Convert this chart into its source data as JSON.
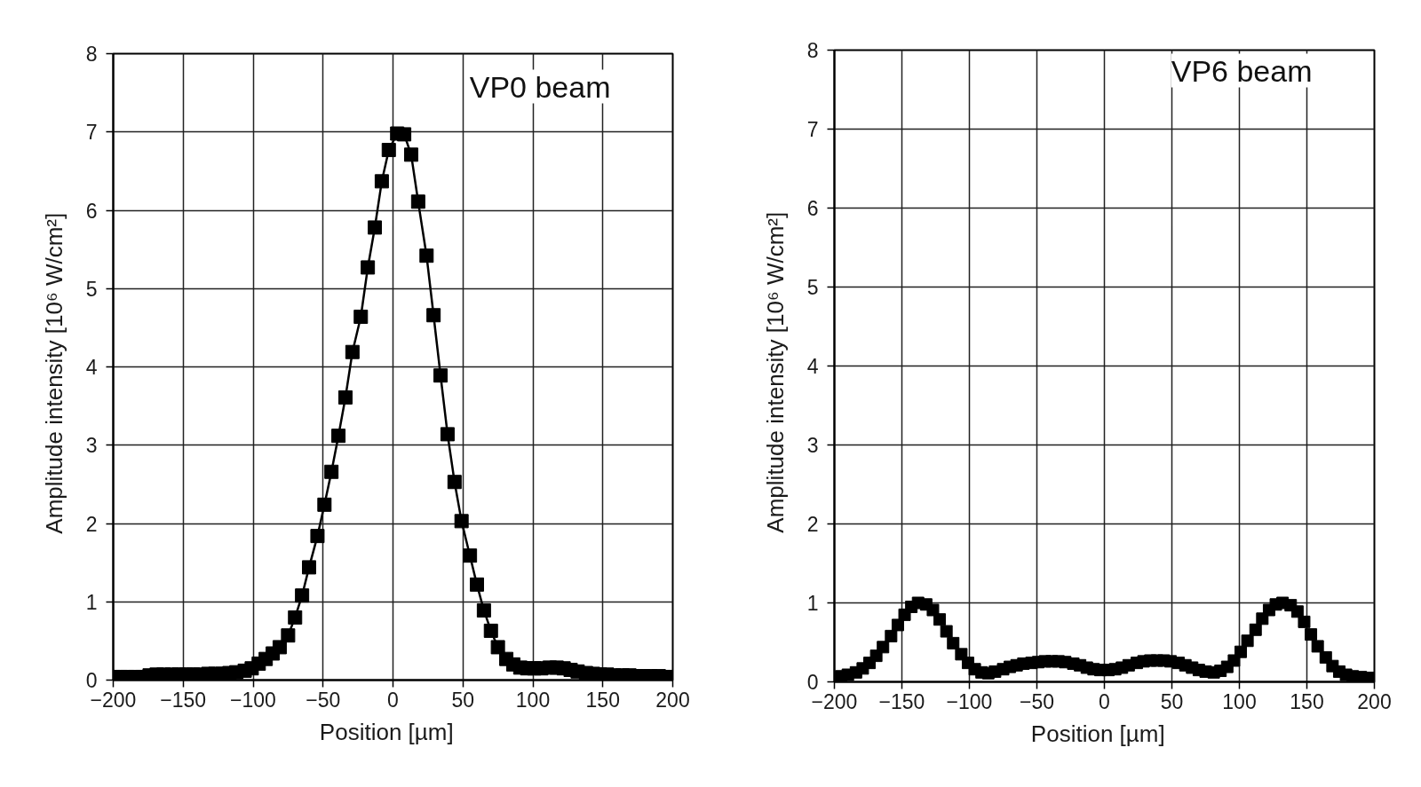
{
  "chart_data": [
    {
      "type": "line",
      "xlabel": "Position   [µm]",
      "ylabel": "Amplitude intensity   [10⁶ W/cm²]",
      "annotations": [
        "VP0 beam"
      ],
      "x": [
        -200,
        -195,
        -190,
        -184,
        -179,
        -174,
        -169,
        -164,
        -158,
        -153,
        -148,
        -143,
        -138,
        -132,
        -127,
        -122,
        -117,
        -112,
        -106,
        -101,
        -96,
        -91,
        -86,
        -81,
        -75,
        -70,
        -65,
        -60,
        -54,
        -49,
        -44,
        -39,
        -34,
        -29,
        -23,
        -18,
        -13,
        -8,
        -3,
        3,
        8,
        13,
        18,
        24,
        29,
        34,
        39,
        44,
        49,
        55,
        60,
        65,
        70,
        75,
        81,
        86,
        91,
        96,
        101,
        106,
        112,
        117,
        122,
        127,
        132,
        138,
        143,
        148,
        153,
        158,
        164,
        169,
        174,
        179,
        184,
        190,
        195,
        200
      ],
      "series": [
        {
          "color": "#000000",
          "values": [
            0.04,
            0.04,
            0.04,
            0.04,
            0.04,
            0.06,
            0.07,
            0.07,
            0.07,
            0.07,
            0.07,
            0.07,
            0.07,
            0.08,
            0.08,
            0.08,
            0.09,
            0.1,
            0.12,
            0.15,
            0.21,
            0.27,
            0.34,
            0.42,
            0.57,
            0.8,
            1.08,
            1.44,
            1.84,
            2.24,
            2.66,
            3.12,
            3.61,
            4.19,
            4.64,
            5.27,
            5.78,
            6.37,
            6.77,
            6.98,
            6.97,
            6.71,
            6.11,
            5.42,
            4.66,
            3.89,
            3.14,
            2.53,
            2.03,
            1.59,
            1.22,
            0.89,
            0.63,
            0.42,
            0.27,
            0.2,
            0.16,
            0.15,
            0.15,
            0.15,
            0.16,
            0.16,
            0.15,
            0.13,
            0.11,
            0.09,
            0.08,
            0.07,
            0.07,
            0.06,
            0.06,
            0.06,
            0.05,
            0.05,
            0.05,
            0.05,
            0.04,
            0.04
          ]
        }
      ],
      "xlim": [
        -200,
        200
      ],
      "xticks": [
        {
          "value": -200,
          "label": "−200"
        },
        {
          "value": -150,
          "label": "−150"
        },
        {
          "value": -100,
          "label": "−100"
        },
        {
          "value": -50,
          "label": "−50"
        },
        0,
        50,
        100,
        150,
        200
      ],
      "ylim": [
        0,
        8
      ],
      "yticks": [
        0,
        1,
        2,
        3,
        4,
        5,
        6,
        7,
        8
      ],
      "grid": true,
      "marker": "square",
      "line_style": "solid"
    },
    {
      "type": "scatter",
      "xlabel": "Position   [µm]",
      "ylabel": "Amplitude intensity   [10⁶ W/cm²]",
      "annotations": [
        "VP6 beam"
      ],
      "x": [
        -195,
        -190,
        -184,
        -179,
        -174,
        -169,
        -164,
        -158,
        -153,
        -148,
        -143,
        -138,
        -132,
        -127,
        -122,
        -117,
        -112,
        -106,
        -101,
        -96,
        -91,
        -86,
        -81,
        -75,
        -70,
        -65,
        -60,
        -54,
        -49,
        -44,
        -39,
        -34,
        -29,
        -23,
        -18,
        -13,
        -8,
        -3,
        3,
        8,
        13,
        18,
        24,
        29,
        34,
        39,
        44,
        49,
        55,
        60,
        65,
        70,
        75,
        81,
        86,
        91,
        96,
        101,
        106,
        112,
        117,
        122,
        127,
        132,
        138,
        143,
        148,
        153,
        158,
        164,
        169,
        174,
        179,
        184,
        190,
        195,
        200
      ],
      "series": [
        {
          "color": "#000000",
          "values": [
            0.07,
            0.09,
            0.12,
            0.17,
            0.24,
            0.33,
            0.44,
            0.58,
            0.72,
            0.85,
            0.95,
            1.0,
            0.98,
            0.91,
            0.79,
            0.64,
            0.49,
            0.35,
            0.24,
            0.16,
            0.12,
            0.11,
            0.13,
            0.16,
            0.19,
            0.21,
            0.23,
            0.24,
            0.25,
            0.26,
            0.26,
            0.26,
            0.25,
            0.23,
            0.21,
            0.18,
            0.16,
            0.15,
            0.15,
            0.16,
            0.18,
            0.21,
            0.24,
            0.26,
            0.27,
            0.27,
            0.27,
            0.26,
            0.24,
            0.21,
            0.18,
            0.15,
            0.13,
            0.12,
            0.14,
            0.19,
            0.27,
            0.38,
            0.52,
            0.66,
            0.8,
            0.91,
            0.98,
            1.0,
            0.97,
            0.89,
            0.76,
            0.6,
            0.45,
            0.31,
            0.2,
            0.13,
            0.09,
            0.07,
            0.06,
            0.05,
            0.05
          ]
        }
      ],
      "xlim": [
        -200,
        200
      ],
      "xticks": [
        {
          "value": -200,
          "label": "−200"
        },
        {
          "value": -150,
          "label": "−150"
        },
        {
          "value": -100,
          "label": "−100"
        },
        {
          "value": -50,
          "label": "−50"
        },
        0,
        50,
        100,
        150,
        200
      ],
      "ylim": [
        0,
        8
      ],
      "yticks": [
        0,
        1,
        2,
        3,
        4,
        5,
        6,
        7,
        8
      ],
      "grid": true,
      "marker": "square"
    }
  ]
}
